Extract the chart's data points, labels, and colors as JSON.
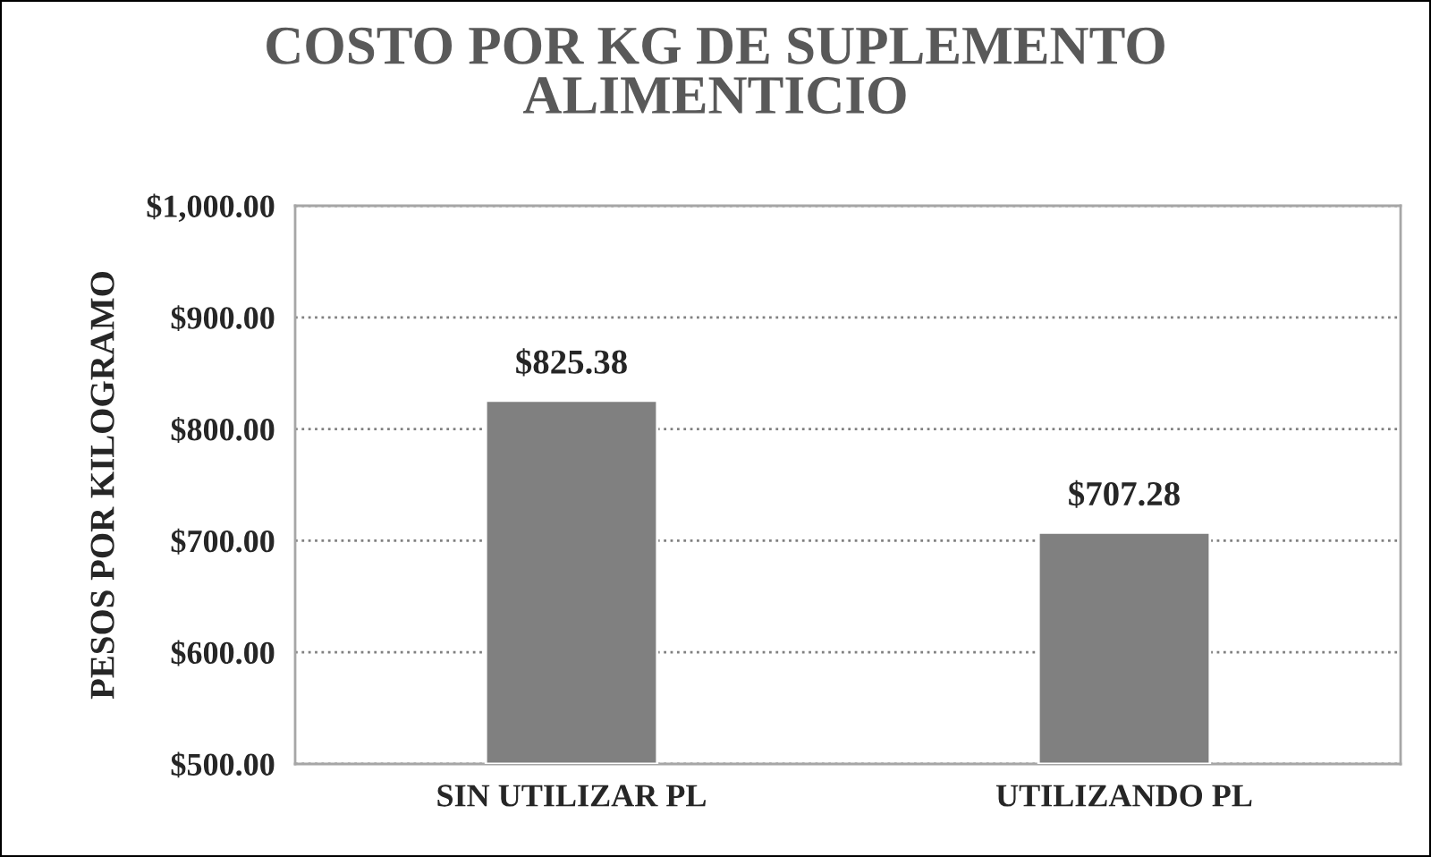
{
  "chart_data": {
    "type": "bar",
    "title": "COSTO POR KG DE SUPLEMENTO\nALIMENTICIO",
    "ylabel": "PESOS POR KILOGRAMO",
    "categories": [
      "SIN UTILIZAR PL",
      "UTILIZANDO PL"
    ],
    "values": [
      825.38,
      707.28
    ],
    "color": "#808080",
    "value_labels": [
      "$825.38",
      "$707.28"
    ],
    "ylim": [
      500,
      1000
    ],
    "yticks": [
      {
        "value": 500,
        "label": "$500.00"
      },
      {
        "value": 600,
        "label": "$600.00"
      },
      {
        "value": 700,
        "label": "$700.00"
      },
      {
        "value": 800,
        "label": "$800.00"
      },
      {
        "value": 900,
        "label": "$900.00"
      },
      {
        "value": 1000,
        "label": "$1,000.00"
      }
    ],
    "grid": "y"
  }
}
